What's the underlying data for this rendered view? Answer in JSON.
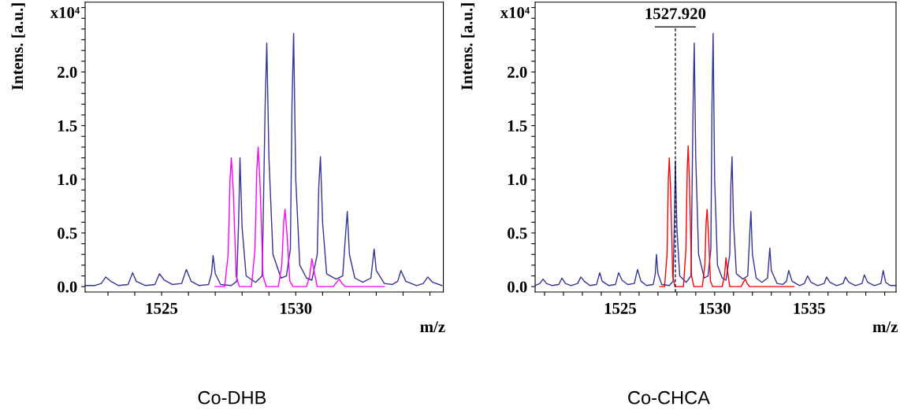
{
  "chart_data": [
    {
      "type": "line",
      "title": "Co-DHB",
      "xlabel": "m/z",
      "ylabel": "Intens. [a.u.]",
      "annotations": [
        "x10⁴"
      ],
      "xlim": [
        1522.15,
        1535.5
      ],
      "xticks": [
        {
          "value": 1523,
          "label": null
        },
        {
          "value": 1524,
          "label": null
        },
        1525,
        {
          "value": 1526,
          "label": null
        },
        {
          "value": 1527,
          "label": null
        },
        {
          "value": 1528,
          "label": null
        },
        {
          "value": 1529,
          "label": null
        },
        1530,
        {
          "value": 1531,
          "label": null
        },
        {
          "value": 1532,
          "label": null
        },
        {
          "value": 1533,
          "label": null
        },
        {
          "value": 1534,
          "label": null
        },
        {
          "value": 1535,
          "label": null
        }
      ],
      "ylim": [
        -0.05,
        2.65
      ],
      "yticks": [
        {
          "value": 0,
          "label": "0.0"
        },
        {
          "value": 0.1,
          "label": null
        },
        {
          "value": 0.2,
          "label": null
        },
        {
          "value": 0.3,
          "label": null
        },
        {
          "value": 0.4,
          "label": null
        },
        {
          "value": 0.5,
          "label": "0.5"
        },
        {
          "value": 0.6,
          "label": null
        },
        {
          "value": 0.7,
          "label": null
        },
        {
          "value": 0.8,
          "label": null
        },
        {
          "value": 0.9,
          "label": null
        },
        {
          "value": 1,
          "label": "1.0"
        },
        {
          "value": 1.1,
          "label": null
        },
        {
          "value": 1.2,
          "label": null
        },
        {
          "value": 1.3,
          "label": null
        },
        {
          "value": 1.4,
          "label": null
        },
        {
          "value": 1.5,
          "label": "1.5"
        },
        {
          "value": 1.6,
          "label": null
        },
        {
          "value": 1.7,
          "label": null
        },
        {
          "value": 1.8,
          "label": null
        },
        {
          "value": 1.9,
          "label": null
        },
        {
          "value": 2,
          "label": "2.0"
        },
        {
          "value": 2.1,
          "label": null
        },
        {
          "value": 2.2,
          "label": null
        },
        {
          "value": 2.3,
          "label": null
        },
        {
          "value": 2.4,
          "label": null
        },
        {
          "value": 2.5,
          "label": null
        },
        {
          "value": 2.6,
          "label": null
        }
      ],
      "series": [
        {
          "color": "#333399",
          "x": [
            1522.15,
            1522.5,
            1522.75,
            1522.92,
            1523.1,
            1523.4,
            1523.75,
            1523.92,
            1524.05,
            1524.4,
            1524.75,
            1524.92,
            1525.1,
            1525.4,
            1525.75,
            1525.92,
            1526.1,
            1526.4,
            1526.75,
            1526.86,
            1526.92,
            1527.0,
            1527.2,
            1527.6,
            1527.8,
            1527.87,
            1527.92,
            1528.0,
            1528.15,
            1528.5,
            1528.75,
            1528.86,
            1528.92,
            1529.0,
            1529.15,
            1529.45,
            1529.65,
            1529.8,
            1529.86,
            1529.92,
            1530.0,
            1530.15,
            1530.4,
            1530.6,
            1530.8,
            1530.86,
            1530.92,
            1531.0,
            1531.15,
            1531.5,
            1531.75,
            1531.86,
            1531.92,
            1532.0,
            1532.2,
            1532.5,
            1532.8,
            1532.92,
            1533.0,
            1533.3,
            1533.6,
            1533.8,
            1533.92,
            1534.1,
            1534.5,
            1534.75,
            1534.92,
            1535.1,
            1535.45
          ],
          "values": [
            0.01,
            0.01,
            0.03,
            0.09,
            0.05,
            0.01,
            0.02,
            0.13,
            0.05,
            0.01,
            0.02,
            0.12,
            0.06,
            0.02,
            0.03,
            0.16,
            0.05,
            0.01,
            0.02,
            0.12,
            0.29,
            0.12,
            0.02,
            0.01,
            0.05,
            0.6,
            1.2,
            0.55,
            0.1,
            0.04,
            0.1,
            1.7,
            2.27,
            1.2,
            0.3,
            0.08,
            0.1,
            0.35,
            1.7,
            2.36,
            1.0,
            0.2,
            0.08,
            0.06,
            0.3,
            0.95,
            1.21,
            0.6,
            0.12,
            0.07,
            0.1,
            0.5,
            0.7,
            0.3,
            0.08,
            0.04,
            0.08,
            0.35,
            0.15,
            0.03,
            0.02,
            0.05,
            0.15,
            0.05,
            0.01,
            0.03,
            0.09,
            0.04,
            0.01
          ]
        },
        {
          "color": "#ff00ff",
          "x": [
            1527.0,
            1527.35,
            1527.48,
            1527.55,
            1527.6,
            1527.67,
            1527.78,
            1527.9,
            1528.35,
            1528.48,
            1528.55,
            1528.6,
            1528.67,
            1528.78,
            1528.9,
            1529.35,
            1529.48,
            1529.55,
            1529.6,
            1529.67,
            1529.78,
            1529.9,
            1530.4,
            1530.52,
            1530.6,
            1530.68,
            1530.8,
            1531.4,
            1531.55,
            1531.62,
            1531.72,
            1531.85,
            1533.3
          ],
          "values": [
            0,
            0,
            0.3,
            1.0,
            1.2,
            0.9,
            0.1,
            0,
            0,
            0.35,
            1.1,
            1.3,
            0.95,
            0.1,
            0,
            0,
            0.2,
            0.6,
            0.72,
            0.5,
            0.05,
            0,
            0,
            0.1,
            0.26,
            0.15,
            0,
            0,
            0.05,
            0.07,
            0.03,
            0,
            0
          ]
        }
      ]
    },
    {
      "type": "line",
      "title": "Co-CHCA",
      "xlabel": "m/z",
      "ylabel": "Intens. [a.u.]",
      "annotations": [
        "x10⁴"
      ],
      "ref_lines": [
        {
          "axis": "x",
          "value": 1527.92,
          "label": "1527.920",
          "line_style": "dashed",
          "color": "#000000"
        }
      ],
      "xlim": [
        1520.5,
        1539.6
      ],
      "xticks": [
        {
          "value": 1521,
          "label": null
        },
        {
          "value": 1522,
          "label": null
        },
        {
          "value": 1523,
          "label": null
        },
        {
          "value": 1524,
          "label": null
        },
        1525,
        {
          "value": 1526,
          "label": null
        },
        {
          "value": 1527,
          "label": null
        },
        {
          "value": 1528,
          "label": null
        },
        {
          "value": 1529,
          "label": null
        },
        1530,
        {
          "value": 1531,
          "label": null
        },
        {
          "value": 1532,
          "label": null
        },
        {
          "value": 1533,
          "label": null
        },
        {
          "value": 1534,
          "label": null
        },
        1535,
        {
          "value": 1536,
          "label": null
        },
        {
          "value": 1537,
          "label": null
        },
        {
          "value": 1538,
          "label": null
        },
        {
          "value": 1539,
          "label": null
        }
      ],
      "ylim": [
        -0.05,
        2.65
      ],
      "yticks": [
        {
          "value": 0,
          "label": "0.0"
        },
        {
          "value": 0.1,
          "label": null
        },
        {
          "value": 0.2,
          "label": null
        },
        {
          "value": 0.3,
          "label": null
        },
        {
          "value": 0.4,
          "label": null
        },
        {
          "value": 0.5,
          "label": "0.5"
        },
        {
          "value": 0.6,
          "label": null
        },
        {
          "value": 0.7,
          "label": null
        },
        {
          "value": 0.8,
          "label": null
        },
        {
          "value": 0.9,
          "label": null
        },
        {
          "value": 1,
          "label": "1.0"
        },
        {
          "value": 1.1,
          "label": null
        },
        {
          "value": 1.2,
          "label": null
        },
        {
          "value": 1.3,
          "label": null
        },
        {
          "value": 1.4,
          "label": null
        },
        {
          "value": 1.5,
          "label": "1.5"
        },
        {
          "value": 1.6,
          "label": null
        },
        {
          "value": 1.7,
          "label": null
        },
        {
          "value": 1.8,
          "label": null
        },
        {
          "value": 1.9,
          "label": null
        },
        {
          "value": 2,
          "label": "2.0"
        },
        {
          "value": 2.1,
          "label": null
        },
        {
          "value": 2.2,
          "label": null
        },
        {
          "value": 2.3,
          "label": null
        },
        {
          "value": 2.4,
          "label": null
        },
        {
          "value": 2.5,
          "label": null
        },
        {
          "value": 2.6,
          "label": null
        }
      ],
      "series": [
        {
          "color": "#333399",
          "x": [
            1520.5,
            1520.75,
            1520.92,
            1521.1,
            1521.4,
            1521.75,
            1521.92,
            1522.1,
            1522.4,
            1522.75,
            1522.92,
            1523.1,
            1523.4,
            1523.75,
            1523.92,
            1524.05,
            1524.4,
            1524.75,
            1524.92,
            1525.1,
            1525.4,
            1525.75,
            1525.92,
            1526.1,
            1526.4,
            1526.75,
            1526.86,
            1526.92,
            1527.0,
            1527.2,
            1527.6,
            1527.8,
            1527.87,
            1527.92,
            1528.0,
            1528.15,
            1528.5,
            1528.75,
            1528.86,
            1528.92,
            1529.0,
            1529.15,
            1529.45,
            1529.65,
            1529.8,
            1529.86,
            1529.92,
            1530.0,
            1530.15,
            1530.4,
            1530.6,
            1530.8,
            1530.86,
            1530.92,
            1531.0,
            1531.15,
            1531.5,
            1531.75,
            1531.86,
            1531.92,
            1532.0,
            1532.2,
            1532.5,
            1532.8,
            1532.92,
            1533.0,
            1533.3,
            1533.6,
            1533.8,
            1533.92,
            1534.1,
            1534.5,
            1534.75,
            1534.92,
            1535.1,
            1535.45,
            1535.8,
            1535.92,
            1536.1,
            1536.45,
            1536.8,
            1536.92,
            1537.1,
            1537.45,
            1537.8,
            1537.92,
            1538.1,
            1538.45,
            1538.8,
            1538.92,
            1539.05,
            1539.3,
            1539.6
          ],
          "values": [
            0.01,
            0.03,
            0.07,
            0.03,
            0.01,
            0.02,
            0.08,
            0.03,
            0.01,
            0.03,
            0.09,
            0.05,
            0.01,
            0.02,
            0.13,
            0.05,
            0.01,
            0.02,
            0.13,
            0.06,
            0.02,
            0.03,
            0.16,
            0.05,
            0.01,
            0.02,
            0.12,
            0.3,
            0.12,
            0.02,
            0.01,
            0.05,
            0.6,
            1.17,
            0.55,
            0.1,
            0.04,
            0.1,
            1.7,
            2.27,
            1.2,
            0.3,
            0.08,
            0.1,
            0.35,
            1.7,
            2.36,
            1.0,
            0.2,
            0.08,
            0.06,
            0.3,
            0.95,
            1.21,
            0.6,
            0.12,
            0.07,
            0.1,
            0.5,
            0.7,
            0.3,
            0.08,
            0.04,
            0.08,
            0.36,
            0.15,
            0.03,
            0.02,
            0.05,
            0.15,
            0.05,
            0.01,
            0.03,
            0.1,
            0.04,
            0.01,
            0.03,
            0.09,
            0.04,
            0.01,
            0.03,
            0.09,
            0.04,
            0.01,
            0.03,
            0.11,
            0.04,
            0.01,
            0.03,
            0.15,
            0.04,
            0.01,
            0.01
          ]
        },
        {
          "color": "#ff0000",
          "x": [
            1527.1,
            1527.35,
            1527.48,
            1527.55,
            1527.6,
            1527.67,
            1527.78,
            1527.9,
            1528.35,
            1528.48,
            1528.55,
            1528.6,
            1528.67,
            1528.78,
            1528.9,
            1529.35,
            1529.48,
            1529.55,
            1529.6,
            1529.67,
            1529.78,
            1529.9,
            1530.4,
            1530.52,
            1530.6,
            1530.68,
            1530.8,
            1531.4,
            1531.55,
            1531.62,
            1531.72,
            1531.85,
            1534.2
          ],
          "values": [
            0,
            0,
            0.3,
            1.0,
            1.2,
            0.9,
            0.1,
            0,
            0,
            0.35,
            1.1,
            1.31,
            0.95,
            0.1,
            0,
            0,
            0.2,
            0.6,
            0.72,
            0.5,
            0.05,
            0,
            0,
            0.1,
            0.27,
            0.15,
            0,
            0,
            0.05,
            0.07,
            0.03,
            0,
            0
          ]
        }
      ]
    }
  ]
}
